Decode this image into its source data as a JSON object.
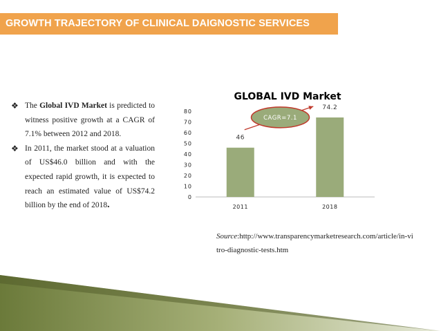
{
  "header": {
    "title": "GROWTH TRAJECTORY OF CLINICAL DAIGNOSTIC SERVICES"
  },
  "bullets": [
    {
      "pre": "The ",
      "bold1": "Global",
      "mid1": " ",
      "bold2": "IVD",
      "mid2": " ",
      "bold3": "Market",
      "post": " is predicted to witness positive growth at a CAGR of 7.1% between 2012 and 2018."
    },
    {
      "text": "In 2011, the market stood at a valuation of US$46.0 billion and with the expected rapid growth, it is expected to reach an estimated value of US$74.2 billion by the end of 2018",
      "end": "."
    }
  ],
  "source": {
    "label": "Source",
    "text": ":http://www.transparencymarketresearch.com/article/in-vitro-diagnostic-tests.htm"
  },
  "chart_data": {
    "type": "bar",
    "title": "GLOBAL IVD Market",
    "categories": [
      "2011",
      "2018"
    ],
    "values": [
      46,
      74.2
    ],
    "value_labels": [
      "46",
      "74.2"
    ],
    "ylim": [
      0,
      80
    ],
    "yticks": [
      "0",
      "10",
      "20",
      "30",
      "40",
      "50",
      "60",
      "70",
      "80"
    ],
    "xlabel": "",
    "ylabel": "",
    "grid": false,
    "bar_color": "#9aab7a",
    "annotation": "CAGR=7.1"
  }
}
